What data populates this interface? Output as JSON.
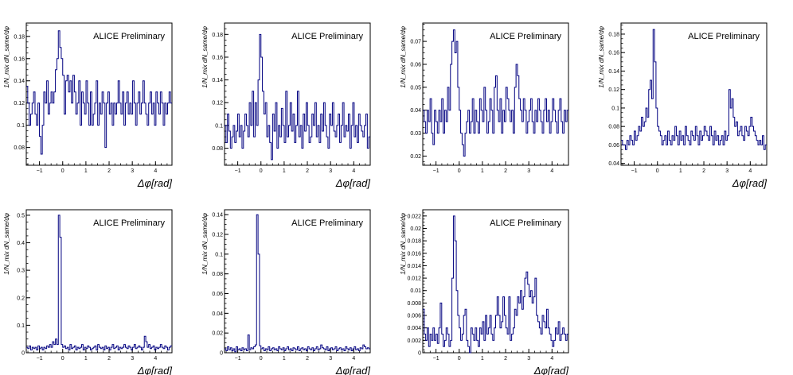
{
  "chart_data": [
    {
      "type": "line",
      "annotation": "ALICE Preliminary",
      "xlabel": "Δφ[rad]",
      "ylabel": "1/N_mix dN_same/dφ",
      "xlim": [
        -1.57,
        4.71
      ],
      "ylim": [
        0.064,
        0.192
      ],
      "xticks": [
        -1,
        0,
        1,
        2,
        3,
        4
      ],
      "xtick_labels": [
        "−1",
        "0",
        "1",
        "2",
        "3",
        "4"
      ],
      "yticks": [
        0.08,
        0.1,
        0.12,
        0.14,
        0.16,
        0.18
      ],
      "ytick_labels": [
        "0.08",
        "0.1",
        "0.12",
        "0.14",
        "0.16",
        "0.18"
      ],
      "series": [
        {
          "color": "#000080",
          "values": [
            0.135,
            0.12,
            0.1,
            0.11,
            0.12,
            0.13,
            0.11,
            0.1,
            0.12,
            0.09,
            0.074,
            0.1,
            0.13,
            0.12,
            0.14,
            0.11,
            0.12,
            0.13,
            0.12,
            0.13,
            0.15,
            0.16,
            0.185,
            0.17,
            0.16,
            0.145,
            0.11,
            0.14,
            0.145,
            0.13,
            0.14,
            0.12,
            0.145,
            0.13,
            0.11,
            0.12,
            0.14,
            0.1,
            0.13,
            0.12,
            0.11,
            0.14,
            0.12,
            0.1,
            0.13,
            0.1,
            0.11,
            0.12,
            0.14,
            0.1,
            0.12,
            0.11,
            0.13,
            0.12,
            0.08,
            0.12,
            0.13,
            0.11,
            0.12,
            0.1,
            0.12,
            0.11,
            0.12,
            0.14,
            0.12,
            0.11,
            0.13,
            0.1,
            0.12,
            0.13,
            0.11,
            0.12,
            0.11,
            0.14,
            0.12,
            0.1,
            0.12,
            0.13,
            0.11,
            0.12,
            0.14,
            0.12,
            0.11,
            0.1,
            0.12,
            0.13,
            0.11,
            0.12,
            0.1,
            0.13,
            0.12,
            0.11,
            0.13,
            0.12,
            0.1,
            0.12,
            0.11,
            0.12,
            0.13,
            0.12
          ]
        }
      ]
    },
    {
      "type": "line",
      "annotation": "ALICE Preliminary",
      "xlabel": "Δφ[rad]",
      "ylabel": "1/N_mix dN_same/dφ",
      "xlim": [
        -1.57,
        4.71
      ],
      "ylim": [
        0.065,
        0.19
      ],
      "xticks": [
        -1,
        0,
        1,
        2,
        3,
        4
      ],
      "xtick_labels": [
        "−1",
        "0",
        "1",
        "2",
        "3",
        "4"
      ],
      "yticks": [
        0.08,
        0.1,
        0.12,
        0.14,
        0.16,
        0.18
      ],
      "ytick_labels": [
        "0.08",
        "0.1",
        "0.12",
        "0.14",
        "0.16",
        "0.18"
      ],
      "series": [
        {
          "color": "#000080",
          "values": [
            0.1,
            0.085,
            0.11,
            0.095,
            0.08,
            0.09,
            0.1,
            0.085,
            0.095,
            0.11,
            0.09,
            0.1,
            0.08,
            0.095,
            0.11,
            0.1,
            0.09,
            0.12,
            0.1,
            0.13,
            0.09,
            0.12,
            0.1,
            0.14,
            0.18,
            0.16,
            0.13,
            0.11,
            0.12,
            0.09,
            0.1,
            0.085,
            0.07,
            0.11,
            0.095,
            0.12,
            0.08,
            0.1,
            0.09,
            0.115,
            0.1,
            0.085,
            0.13,
            0.09,
            0.1,
            0.12,
            0.095,
            0.11,
            0.085,
            0.1,
            0.13,
            0.09,
            0.1,
            0.08,
            0.11,
            0.095,
            0.12,
            0.1,
            0.085,
            0.09,
            0.11,
            0.1,
            0.12,
            0.09,
            0.1,
            0.085,
            0.11,
            0.095,
            0.12,
            0.1,
            0.09,
            0.08,
            0.11,
            0.1,
            0.12,
            0.095,
            0.09,
            0.1,
            0.11,
            0.085,
            0.1,
            0.12,
            0.09,
            0.1,
            0.095,
            0.11,
            0.08,
            0.1,
            0.12,
            0.09,
            0.1,
            0.085,
            0.11,
            0.1,
            0.095,
            0.09,
            0.1,
            0.11,
            0.08,
            0.09
          ]
        }
      ]
    },
    {
      "type": "line",
      "annotation": "ALICE Preliminary",
      "xlabel": "",
      "ylabel": "1/N_mix dN_same/dφ",
      "xlim": [
        -1.57,
        4.71
      ],
      "ylim": [
        0.016,
        0.078
      ],
      "xticks": [
        -1,
        0,
        1,
        2,
        3,
        4
      ],
      "xtick_labels": [
        "−1",
        "0",
        "1",
        "2",
        "3",
        "4"
      ],
      "yticks": [
        0.02,
        0.03,
        0.04,
        0.05,
        0.06,
        0.07
      ],
      "ytick_labels": [
        "0.02",
        "0.03",
        "0.04",
        "0.05",
        "0.06",
        "0.07"
      ],
      "series": [
        {
          "color": "#000080",
          "values": [
            0.04,
            0.035,
            0.03,
            0.04,
            0.035,
            0.045,
            0.03,
            0.025,
            0.04,
            0.035,
            0.03,
            0.04,
            0.035,
            0.045,
            0.03,
            0.04,
            0.035,
            0.05,
            0.04,
            0.06,
            0.07,
            0.075,
            0.065,
            0.07,
            0.05,
            0.04,
            0.03,
            0.025,
            0.02,
            0.03,
            0.035,
            0.04,
            0.03,
            0.035,
            0.045,
            0.03,
            0.04,
            0.035,
            0.03,
            0.045,
            0.04,
            0.035,
            0.05,
            0.04,
            0.03,
            0.035,
            0.045,
            0.04,
            0.03,
            0.05,
            0.055,
            0.04,
            0.035,
            0.045,
            0.03,
            0.04,
            0.035,
            0.05,
            0.045,
            0.04,
            0.035,
            0.04,
            0.03,
            0.05,
            0.06,
            0.055,
            0.045,
            0.04,
            0.035,
            0.045,
            0.04,
            0.03,
            0.035,
            0.04,
            0.045,
            0.035,
            0.03,
            0.04,
            0.035,
            0.045,
            0.04,
            0.035,
            0.03,
            0.04,
            0.045,
            0.035,
            0.04,
            0.03,
            0.035,
            0.045,
            0.04,
            0.035,
            0.03,
            0.04,
            0.045,
            0.035,
            0.03,
            0.04,
            0.035,
            0.04
          ]
        }
      ]
    },
    {
      "type": "line",
      "annotation": "ALICE Preliminary",
      "xlabel": "Δφ[rad]",
      "ylabel": "1/N_mix dN_same/dφ",
      "xlim": [
        -1.57,
        4.71
      ],
      "ylim": [
        0.038,
        0.192
      ],
      "xticks": [
        -1,
        0,
        1,
        2,
        3,
        4
      ],
      "xtick_labels": [
        "−1",
        "0",
        "1",
        "2",
        "3",
        "4"
      ],
      "yticks": [
        0.04,
        0.06,
        0.08,
        0.1,
        0.12,
        0.14,
        0.16,
        0.18
      ],
      "ytick_labels": [
        "0.04",
        "0.06",
        "0.08",
        "0.1",
        "0.12",
        "0.14",
        "0.16",
        "0.18"
      ],
      "series": [
        {
          "color": "#000080",
          "values": [
            0.065,
            0.06,
            0.06,
            0.055,
            0.065,
            0.06,
            0.07,
            0.065,
            0.06,
            0.075,
            0.065,
            0.07,
            0.08,
            0.075,
            0.09,
            0.08,
            0.085,
            0.1,
            0.09,
            0.12,
            0.13,
            0.11,
            0.185,
            0.15,
            0.1,
            0.08,
            0.075,
            0.07,
            0.06,
            0.065,
            0.07,
            0.06,
            0.075,
            0.065,
            0.06,
            0.07,
            0.065,
            0.08,
            0.07,
            0.06,
            0.075,
            0.065,
            0.07,
            0.06,
            0.08,
            0.07,
            0.065,
            0.06,
            0.075,
            0.07,
            0.065,
            0.08,
            0.07,
            0.06,
            0.075,
            0.065,
            0.07,
            0.08,
            0.075,
            0.07,
            0.065,
            0.08,
            0.07,
            0.06,
            0.075,
            0.065,
            0.07,
            0.06,
            0.065,
            0.07,
            0.06,
            0.075,
            0.065,
            0.07,
            0.12,
            0.1,
            0.11,
            0.09,
            0.08,
            0.085,
            0.07,
            0.075,
            0.08,
            0.07,
            0.065,
            0.08,
            0.075,
            0.07,
            0.08,
            0.09,
            0.08,
            0.075,
            0.07,
            0.065,
            0.06,
            0.065,
            0.06,
            0.07,
            0.055,
            0.06
          ]
        }
      ]
    },
    {
      "type": "line",
      "annotation": "ALICE Preliminary",
      "xlabel": "Δφ[rad]",
      "ylabel": "1/N_mix dN_same/dφ",
      "xlim": [
        -1.57,
        4.71
      ],
      "ylim": [
        0,
        0.52
      ],
      "xticks": [
        -1,
        0,
        1,
        2,
        3,
        4
      ],
      "xtick_labels": [
        "−1",
        "0",
        "1",
        "2",
        "3",
        "4"
      ],
      "yticks": [
        0,
        0.1,
        0.2,
        0.3,
        0.4,
        0.5
      ],
      "ytick_labels": [
        "0",
        "0.1",
        "0.2",
        "0.3",
        "0.4",
        "0.5"
      ],
      "series": [
        {
          "color": "#000080",
          "values": [
            0.02,
            0.015,
            0.025,
            0.01,
            0.02,
            0.015,
            0.02,
            0.01,
            0.025,
            0.015,
            0.02,
            0.01,
            0.02,
            0.015,
            0.025,
            0.02,
            0.03,
            0.02,
            0.04,
            0.03,
            0.05,
            0.03,
            0.5,
            0.42,
            0.03,
            0.02,
            0.025,
            0.015,
            0.02,
            0.01,
            0.03,
            0.015,
            0.02,
            0.025,
            0.01,
            0.02,
            0.015,
            0.02,
            0.03,
            0.01,
            0.02,
            0.015,
            0.025,
            0.02,
            0.01,
            0.015,
            0.02,
            0.025,
            0.01,
            0.03,
            0.02,
            0.015,
            0.02,
            0.01,
            0.025,
            0.015,
            0.02,
            0.01,
            0.02,
            0.03,
            0.015,
            0.02,
            0.025,
            0.01,
            0.02,
            0.015,
            0.02,
            0.03,
            0.02,
            0.015,
            0.025,
            0.02,
            0.01,
            0.02,
            0.03,
            0.015,
            0.02,
            0.025,
            0.02,
            0.01,
            0.02,
            0.06,
            0.04,
            0.02,
            0.03,
            0.015,
            0.02,
            0.025,
            0.01,
            0.02,
            0.015,
            0.02,
            0.03,
            0.02,
            0.015,
            0.025,
            0.02,
            0.01,
            0.02,
            0.025
          ]
        }
      ]
    },
    {
      "type": "line",
      "annotation": "ALICE Preliminary",
      "xlabel": "Δφ[rad]",
      "ylabel": "1/N_mix dN_same/dφ",
      "xlim": [
        -1.57,
        4.71
      ],
      "ylim": [
        0,
        0.145
      ],
      "xticks": [
        -1,
        0,
        1,
        2,
        3,
        4
      ],
      "xtick_labels": [
        "−1",
        "0",
        "1",
        "2",
        "3",
        "4"
      ],
      "yticks": [
        0,
        0.02,
        0.04,
        0.06,
        0.08,
        0.1,
        0.12,
        0.14
      ],
      "ytick_labels": [
        "0",
        "0.02",
        "0.04",
        "0.06",
        "0.08",
        "0.1",
        "0.12",
        "0.14"
      ],
      "series": [
        {
          "color": "#000080",
          "values": [
            0.004,
            0.002,
            0.006,
            0.003,
            0.005,
            0.002,
            0.004,
            0.001,
            0.006,
            0.003,
            0.004,
            0.002,
            0.005,
            0.003,
            0.004,
            0.002,
            0.018,
            0.003,
            0.005,
            0.004,
            0.006,
            0.008,
            0.14,
            0.1,
            0.007,
            0.004,
            0.005,
            0.002,
            0.004,
            0.003,
            0.006,
            0.002,
            0.004,
            0.005,
            0.003,
            0.004,
            0.002,
            0.006,
            0.004,
            0.003,
            0.005,
            0.002,
            0.004,
            0.006,
            0.003,
            0.004,
            0.002,
            0.005,
            0.004,
            0.003,
            0.006,
            0.002,
            0.004,
            0.005,
            0.003,
            0.004,
            0.002,
            0.006,
            0.004,
            0.003,
            0.005,
            0.002,
            0.004,
            0.006,
            0.003,
            0.004,
            0.008,
            0.005,
            0.004,
            0.003,
            0.006,
            0.002,
            0.004,
            0.005,
            0.003,
            0.004,
            0.006,
            0.002,
            0.004,
            0.005,
            0.003,
            0.004,
            0.002,
            0.006,
            0.004,
            0.003,
            0.005,
            0.002,
            0.004,
            0.006,
            0.003,
            0.004,
            0.002,
            0.005,
            0.004,
            0.008,
            0.006,
            0.004,
            0.005,
            0.004
          ]
        }
      ]
    },
    {
      "type": "line",
      "annotation": "ALICE Preliminary",
      "xlabel": "Δφ[rad]",
      "ylabel": "1/N_mix dN_same/dφ",
      "xlim": [
        -1.57,
        4.71
      ],
      "ylim": [
        0,
        0.023
      ],
      "xticks": [
        -1,
        0,
        1,
        2,
        3,
        4
      ],
      "xtick_labels": [
        "−1",
        "0",
        "1",
        "2",
        "3",
        "4"
      ],
      "yticks": [
        0,
        0.002,
        0.004,
        0.006,
        0.008,
        0.01,
        0.012,
        0.014,
        0.016,
        0.018,
        0.02,
        0.022
      ],
      "ytick_labels": [
        "0",
        "0.002",
        "0.004",
        "0.006",
        "0.008",
        "0.01",
        "0.012",
        "0.014",
        "0.016",
        "0.018",
        "0.02",
        "0.022"
      ],
      "series": [
        {
          "color": "#000080",
          "values": [
            0.007,
            0.003,
            0.002,
            0.004,
            0.001,
            0.003,
            0.002,
            0.004,
            0.002,
            0.003,
            0.0015,
            0.004,
            0.008,
            0.003,
            0.001,
            0.002,
            0.004,
            0.003,
            0.001,
            0.002,
            0.012,
            0.022,
            0.018,
            0.01,
            0.006,
            0.004,
            0.002,
            0.003,
            0.006,
            0.007,
            0.002,
            0.001,
            0.0,
            0.004,
            0.003,
            0.002,
            0.004,
            0.002,
            0.001,
            0.004,
            0.003,
            0.005,
            0.002,
            0.006,
            0.003,
            0.004,
            0.006,
            0.003,
            0.002,
            0.004,
            0.006,
            0.009,
            0.006,
            0.004,
            0.005,
            0.009,
            0.006,
            0.004,
            0.003,
            0.009,
            0.002,
            0.003,
            0.004,
            0.007,
            0.006,
            0.009,
            0.008,
            0.01,
            0.007,
            0.009,
            0.012,
            0.013,
            0.011,
            0.009,
            0.01,
            0.008,
            0.009,
            0.012,
            0.006,
            0.005,
            0.004,
            0.003,
            0.006,
            0.005,
            0.004,
            0.007,
            0.004,
            0.003,
            0.002,
            0.001,
            0.002,
            0.004,
            0.003,
            0.005,
            0.002,
            0.003,
            0.004,
            0.003,
            0.002,
            0.003
          ]
        }
      ]
    }
  ]
}
